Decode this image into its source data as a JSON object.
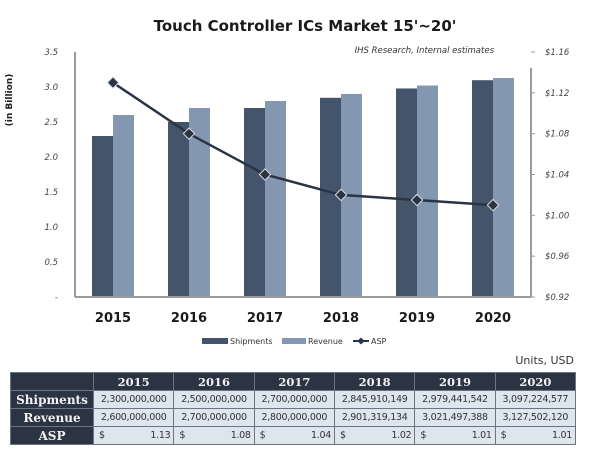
{
  "chart_data": {
    "type": "bar",
    "title": "Touch Controller ICs Market 15'~20'",
    "subtitle": "IHS Research, Internal estimates",
    "categories": [
      "2015",
      "2016",
      "2017",
      "2018",
      "2019",
      "2020"
    ],
    "series": [
      {
        "name": "Shipments",
        "type": "bar",
        "axis": "left",
        "color": "#44546a",
        "values": [
          2.3,
          2.5,
          2.7,
          2.846,
          2.979,
          3.097
        ]
      },
      {
        "name": "Revenue",
        "type": "bar",
        "axis": "left",
        "color": "#8497b0",
        "values": [
          2.6,
          2.7,
          2.8,
          2.901,
          3.021,
          3.128
        ]
      },
      {
        "name": "ASP",
        "type": "line",
        "axis": "right",
        "color": "#2a3445",
        "marker": "diamond",
        "values": [
          1.13,
          1.08,
          1.04,
          1.02,
          1.015,
          1.01
        ]
      }
    ],
    "ylabel": "(in Billion)",
    "ylim": [
      0,
      3.5
    ],
    "yticks": [
      "-",
      "0.5",
      "1.0",
      "1.5",
      "2.0",
      "2.5",
      "3.0",
      "3.5"
    ],
    "y2lim": [
      0.92,
      1.16
    ],
    "y2ticks": [
      "$0.92",
      "$0.96",
      "$1.00",
      "$1.04",
      "$1.08",
      "$1.12",
      "$1.16"
    ],
    "legend": [
      "Shipments",
      "Revenue",
      "ASP"
    ],
    "legend_position": "bottom",
    "grid": false
  },
  "table": {
    "units": "Units, USD",
    "columns": [
      "2015",
      "2016",
      "2017",
      "2018",
      "2019",
      "2020"
    ],
    "rows": [
      {
        "label": "Shipments",
        "cells": [
          "2,300,000,000",
          "2,500,000,000",
          "2,700,000,000",
          "2,845,910,149",
          "2,979,441,542",
          "3,097,224,577"
        ]
      },
      {
        "label": "Revenue",
        "cells": [
          "2,600,000,000",
          "2,700,000,000",
          "2,800,000,000",
          "2,901,319,134",
          "3,021,497,388",
          "3,127,502,120"
        ]
      },
      {
        "label": "ASP",
        "currency": "$",
        "cells": [
          "1.13",
          "1.08",
          "1.04",
          "1.02",
          "1.01",
          "1.01"
        ]
      }
    ]
  }
}
